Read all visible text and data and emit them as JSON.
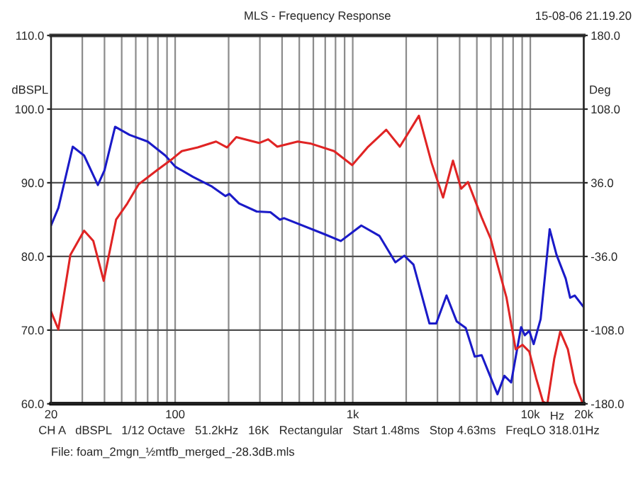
{
  "chart_data": {
    "type": "line",
    "title": "MLS - Frequency Response",
    "xlabel": "Hz",
    "ylabel": "dBSPL",
    "y2label": "Deg",
    "log": "x",
    "grid": true,
    "legend": false,
    "line_style": "solid",
    "marker": "none",
    "xlim": [
      20,
      20000
    ],
    "xticks": [
      20,
      {
        "value": 30,
        "label": null
      },
      {
        "value": 40,
        "label": null
      },
      {
        "value": 50,
        "label": null
      },
      {
        "value": 60,
        "label": null
      },
      {
        "value": 70,
        "label": null
      },
      {
        "value": 80,
        "label": null
      },
      {
        "value": 90,
        "label": null
      },
      100,
      {
        "value": 200,
        "label": null
      },
      {
        "value": 300,
        "label": null
      },
      {
        "value": 400,
        "label": null
      },
      {
        "value": 500,
        "label": null
      },
      {
        "value": 600,
        "label": null
      },
      {
        "value": 700,
        "label": null
      },
      {
        "value": 800,
        "label": null
      },
      {
        "value": 900,
        "label": null
      },
      {
        "value": 1000,
        "label": "1k"
      },
      {
        "value": 2000,
        "label": null
      },
      {
        "value": 3000,
        "label": null
      },
      {
        "value": 4000,
        "label": null
      },
      {
        "value": 5000,
        "label": null
      },
      {
        "value": 6000,
        "label": null
      },
      {
        "value": 7000,
        "label": null
      },
      {
        "value": 8000,
        "label": null
      },
      {
        "value": 9000,
        "label": null
      },
      {
        "value": 10000,
        "label": "10k"
      },
      {
        "value": 20000,
        "label": "20k"
      }
    ],
    "ylim": [
      60,
      110
    ],
    "yticks": [
      {
        "value": 60,
        "label": "60.0"
      },
      {
        "value": 70,
        "label": "70.0"
      },
      {
        "value": 80,
        "label": "80.0"
      },
      {
        "value": 90,
        "label": "90.0"
      },
      {
        "value": 100,
        "label": "100.0"
      },
      {
        "value": 110,
        "label": "110.0"
      }
    ],
    "y2lim": [
      -180,
      180
    ],
    "y2ticks": [
      {
        "value": -180,
        "label": "-180.0"
      },
      {
        "value": -108,
        "label": "-108.0"
      },
      {
        "value": -36,
        "label": "-36.0"
      },
      {
        "value": 36,
        "label": "36.0"
      },
      {
        "value": 108,
        "label": "108.0"
      },
      {
        "value": 180,
        "label": "180.0"
      }
    ],
    "annotations": [
      "15-08-06 21.19.20",
      "CH A   dBSPL   1/12 Octave   51.2kHz   16K   Rectangular   Start 1.48ms   Stop 4.63ms   FreqLO 318.01Hz",
      "File: foam_2mgn_½mtfb_merged_-28.3dB.mls"
    ],
    "series": [
      {
        "color": "#1a1ac8",
        "x": [
          20,
          22,
          26.5,
          30.7,
          36.7,
          40,
          45.9,
          55.4,
          70,
          88,
          100,
          126,
          161,
          192,
          202,
          229,
          288,
          344,
          389,
          410,
          697,
          857,
          1117,
          1413,
          1738,
          1952,
          2198,
          2704,
          2952,
          3374,
          3846,
          4326,
          4864,
          5321,
          6531,
          7145,
          7799,
          8872,
          9311,
          9863,
          10448,
          11430,
          12855,
          14060,
          15820,
          16760,
          17780,
          20000
        ],
        "values": [
          84.2,
          86.6,
          94.9,
          93.7,
          89.7,
          91.7,
          97.6,
          96.5,
          95.6,
          93.7,
          92.2,
          90.8,
          89.5,
          88.2,
          88.5,
          87.2,
          86.1,
          86.0,
          85.0,
          85.2,
          83.0,
          82.1,
          84.2,
          82.8,
          79.2,
          80.1,
          78.9,
          70.9,
          70.9,
          74.7,
          71.2,
          70.3,
          66.4,
          66.6,
          61.3,
          63.8,
          62.9,
          70.4,
          69.3,
          69.9,
          68.1,
          71.5,
          83.7,
          80.2,
          77.0,
          74.4,
          74.7,
          73.1
        ]
      },
      {
        "color": "#e02424",
        "x": [
          20,
          22,
          25.7,
          30.7,
          34.6,
          39.6,
          46.5,
          53.8,
          62.3,
          79,
          97,
          109,
          134,
          170,
          196,
          221,
          297,
          334,
          376,
          490,
          584,
          785,
          993,
          1221,
          1544,
          1842,
          2358,
          2780,
          3226,
          3668,
          4078,
          4456,
          5321,
          5984,
          6531,
          7346,
          8270,
          9034,
          9863,
          10776,
          11776,
          12474,
          13636,
          14736,
          16268,
          17780,
          19758
        ],
        "values": [
          72.5,
          70.1,
          80.2,
          83.5,
          82.1,
          76.7,
          85.0,
          87.2,
          89.8,
          91.7,
          93.3,
          94.3,
          94.8,
          95.6,
          94.8,
          96.2,
          95.4,
          95.9,
          94.9,
          95.6,
          95.3,
          94.3,
          92.4,
          94.9,
          97.2,
          94.9,
          99.1,
          92.7,
          88.0,
          93.0,
          89.2,
          90.1,
          85.3,
          82.4,
          78.9,
          74.4,
          67.4,
          68.0,
          67.1,
          63.5,
          60.3,
          60.0,
          66.1,
          69.8,
          67.4,
          62.9,
          60.0
        ]
      }
    ]
  }
}
